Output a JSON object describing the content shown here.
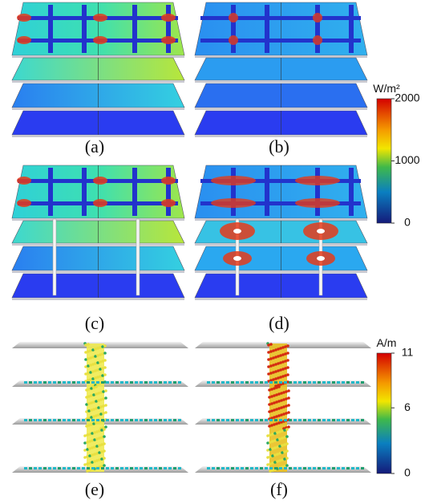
{
  "panel_labels": [
    "(a)",
    "(b)",
    "(c)",
    "(d)",
    "(e)",
    "(f)"
  ],
  "colorbars": [
    {
      "unit": "W/m²",
      "ticks": [
        2000,
        1000,
        0
      ]
    },
    {
      "unit": "A/m",
      "ticks": [
        11,
        6,
        0
      ]
    }
  ]
}
